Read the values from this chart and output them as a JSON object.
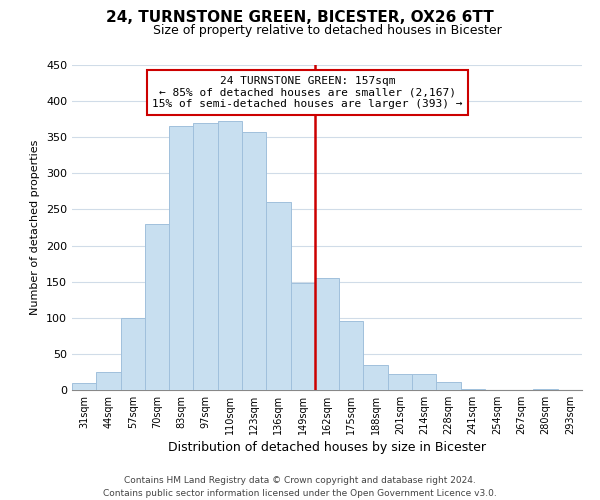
{
  "title": "24, TURNSTONE GREEN, BICESTER, OX26 6TT",
  "subtitle": "Size of property relative to detached houses in Bicester",
  "xlabel": "Distribution of detached houses by size in Bicester",
  "ylabel": "Number of detached properties",
  "footer_line1": "Contains HM Land Registry data © Crown copyright and database right 2024.",
  "footer_line2": "Contains public sector information licensed under the Open Government Licence v3.0.",
  "bar_labels": [
    "31sqm",
    "44sqm",
    "57sqm",
    "70sqm",
    "83sqm",
    "97sqm",
    "110sqm",
    "123sqm",
    "136sqm",
    "149sqm",
    "162sqm",
    "175sqm",
    "188sqm",
    "201sqm",
    "214sqm",
    "228sqm",
    "241sqm",
    "254sqm",
    "267sqm",
    "280sqm",
    "293sqm"
  ],
  "bar_values": [
    10,
    25,
    100,
    230,
    365,
    370,
    372,
    357,
    260,
    148,
    155,
    96,
    35,
    22,
    22,
    11,
    2,
    0,
    0,
    2,
    0
  ],
  "bar_color": "#c8dff0",
  "bar_edge_color": "#a0c0dc",
  "reference_line_color": "#cc0000",
  "annotation_text_line1": "24 TURNSTONE GREEN: 157sqm",
  "annotation_text_line2": "← 85% of detached houses are smaller (2,167)",
  "annotation_text_line3": "15% of semi-detached houses are larger (393) →",
  "annotation_box_color": "#ffffff",
  "annotation_box_edge_color": "#cc0000",
  "ylim": [
    0,
    450
  ],
  "yticks": [
    0,
    50,
    100,
    150,
    200,
    250,
    300,
    350,
    400,
    450
  ],
  "background_color": "#ffffff",
  "grid_color": "#d0dce8",
  "ref_bar_index": 10,
  "title_fontsize": 11,
  "subtitle_fontsize": 9
}
